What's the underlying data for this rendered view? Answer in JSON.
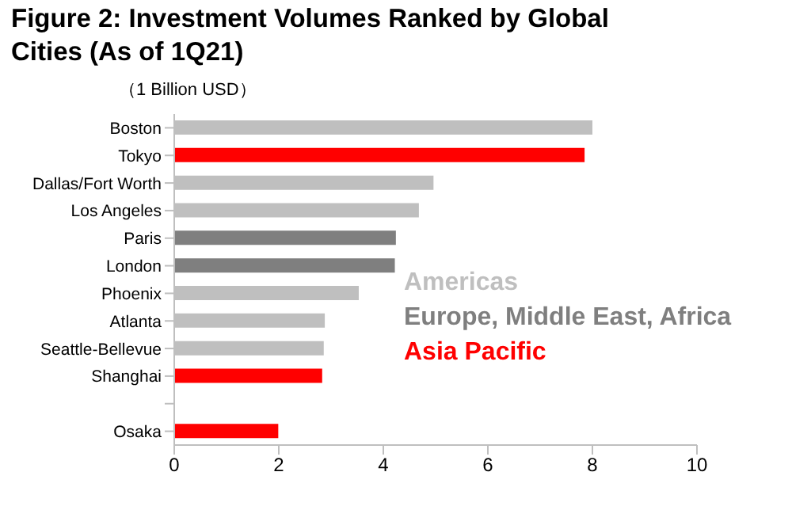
{
  "chart_data": {
    "type": "bar",
    "orientation": "horizontal",
    "stacked": true,
    "title": "Figure 2: Investment Volumes Ranked by Global Cities (As of 1Q21)",
    "xlabel": "（1 Billion USD）",
    "categories": [
      "Boston",
      "Tokyo",
      "Dallas/Fort Worth",
      "Los Angeles",
      "Paris",
      "London",
      "Phoenix",
      "Atlanta",
      "Seattle-Bellevue",
      "Shanghai",
      null,
      "Osaka"
    ],
    "series": [
      {
        "name": "Americas",
        "color": "#bfbfbf",
        "values": [
          8.0,
          null,
          4.96,
          4.68,
          null,
          null,
          3.53,
          2.88,
          2.86,
          null,
          null,
          null
        ]
      },
      {
        "name": "Europe, Middle East, Africa",
        "color": "#7f7f7f",
        "values": [
          null,
          null,
          null,
          null,
          4.24,
          4.22,
          null,
          null,
          null,
          null,
          null,
          null
        ]
      },
      {
        "name": "Asia Pacific",
        "color": "#ff0000",
        "values": [
          null,
          7.85,
          null,
          null,
          null,
          null,
          null,
          null,
          null,
          2.83,
          null,
          1.99
        ]
      }
    ],
    "xlim": [
      0,
      10
    ],
    "xticks": [
      0,
      2,
      4,
      6,
      8,
      10
    ],
    "grid": false,
    "legend": "bottom right"
  }
}
